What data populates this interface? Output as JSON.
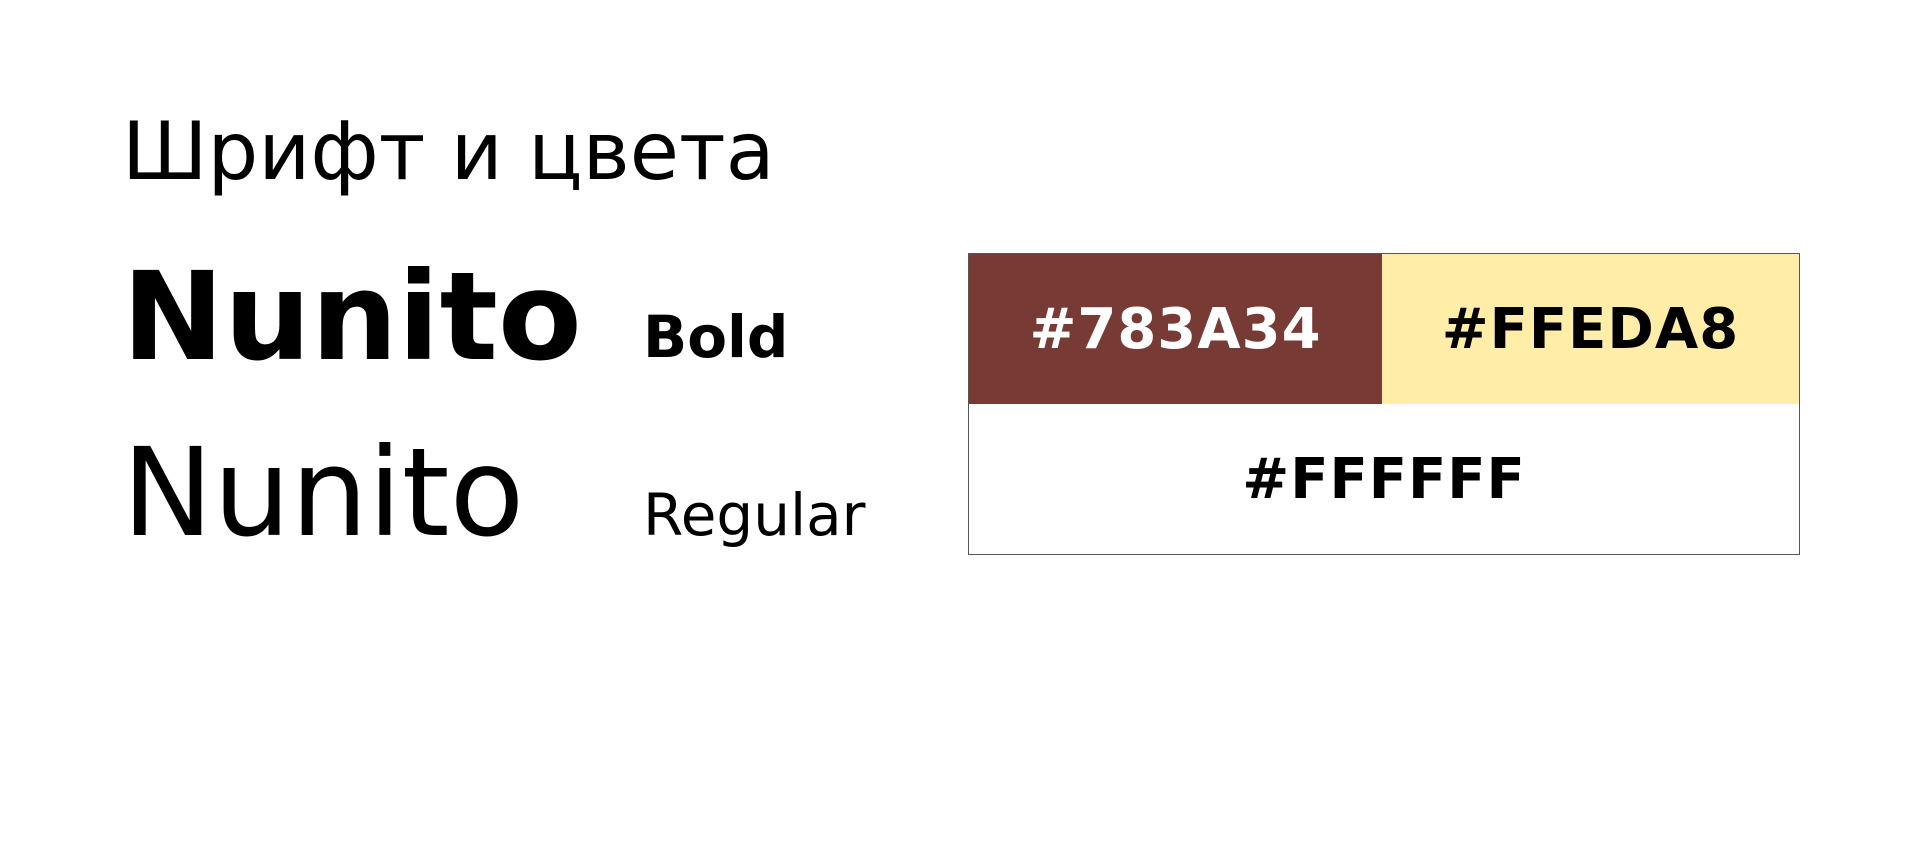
{
  "title": "Шрифт и цвета",
  "font": {
    "name": "Nunito",
    "weights": [
      {
        "label": "Bold"
      },
      {
        "label": "Regular"
      }
    ]
  },
  "palette": {
    "colors": [
      {
        "hex": "#783A34",
        "text_color": "#FFFFFF"
      },
      {
        "hex": "#FFEDA8",
        "text_color": "#000000"
      },
      {
        "hex": "#FFFFFF",
        "text_color": "#000000"
      }
    ]
  }
}
